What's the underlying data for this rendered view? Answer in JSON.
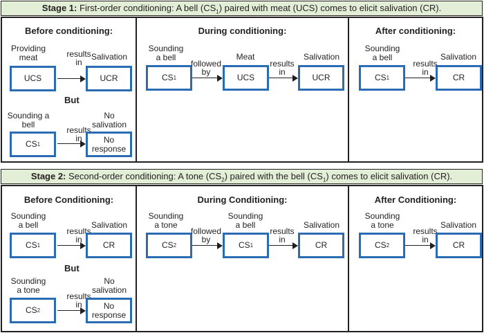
{
  "stage1": {
    "title_bold": "Stage 1:",
    "title_text": "First-order conditioning: A bell (CS",
    "title_sub": "1",
    "title_end": ") paired with meat (UCS) comes to elicit salivation (CR).",
    "before": {
      "title": "Before conditioning:",
      "row1": {
        "left_label": "Providing\nmeat",
        "left_box": "UCS",
        "arrow_label": "results\nin",
        "right_label": "Salivation",
        "right_box": "UCR"
      },
      "but": "But",
      "row2": {
        "left_label": "Sounding a\nbell",
        "left_box_main": "CS",
        "left_box_sub": "1",
        "arrow_label": "results\nin",
        "right_label": "No\nsalivation",
        "right_box": "No\nresponse"
      }
    },
    "during": {
      "title": "During conditioning:",
      "label1": "Sounding\na bell",
      "box1_main": "CS",
      "box1_sub": "1",
      "arrow1": "followed\nby",
      "label2": "Meat",
      "box2": "UCS",
      "arrow2": "results\nin",
      "label3": "Salivation",
      "box3": "UCR"
    },
    "after": {
      "title": "After conditioning:",
      "label1": "Sounding\na bell",
      "box1_main": "CS",
      "box1_sub": "1",
      "arrow1": "results\nin",
      "label2": "Salivation",
      "box2": "CR"
    }
  },
  "stage2": {
    "title_bold": "Stage 2:",
    "title_text": "Second-order conditioning: A tone (CS",
    "title_sub": "2",
    "title_mid": ") paired with the bell (CS",
    "title_sub2": "1",
    "title_end": ") comes to elicit salivation (CR).",
    "before": {
      "title": "Before Conditioning:",
      "row1": {
        "left_label": "Sounding\na bell",
        "left_box_main": "CS",
        "left_box_sub": "1",
        "arrow_label": "results\nin",
        "right_label": "Salivation",
        "right_box": "CR"
      },
      "but": "But",
      "row2": {
        "left_label": "Sounding\na tone",
        "left_box_main": "CS",
        "left_box_sub": "2",
        "arrow_label": "results\nin",
        "right_label": "No\nsalivation",
        "right_box": "No\nresponse"
      }
    },
    "during": {
      "title": "During Conditioning:",
      "label1": "Sounding\na tone",
      "box1_main": "CS",
      "box1_sub": "2",
      "arrow1": "followed\nby",
      "label2": "Sounding\na bell",
      "box2_main": "CS",
      "box2_sub": "1",
      "arrow2": "results\nin",
      "label3": "Salivation",
      "box3": "CR"
    },
    "after": {
      "title": "After Conditioning:",
      "label1": "Sounding\na tone",
      "box1_main": "CS",
      "box1_sub": "2",
      "arrow1": "results\nin",
      "label2": "Salivation",
      "box2": "CR"
    }
  }
}
